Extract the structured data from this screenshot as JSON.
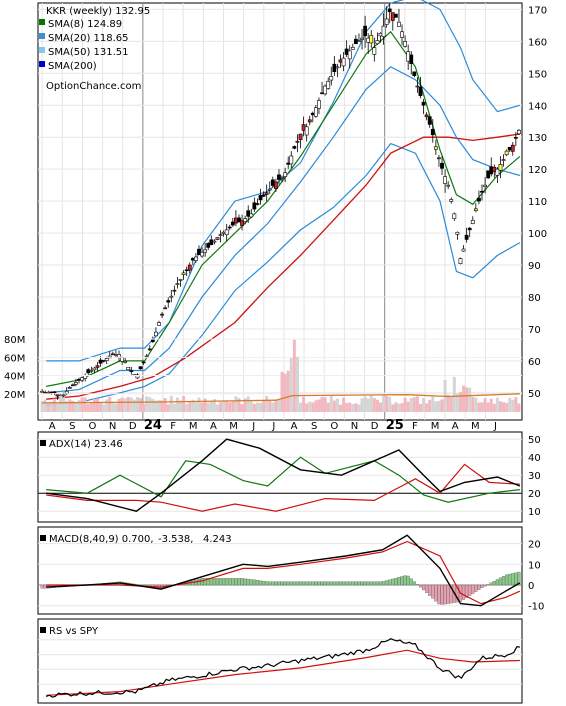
{
  "chart_data": [
    {
      "type": "candlestick",
      "panel": "price",
      "title": "KKR (weekly) 132.95",
      "source": "OptionChance.com",
      "legend": [
        {
          "label": "SMA(8) 124.89",
          "color": "#007700"
        },
        {
          "label": "SMA(20) 118.65",
          "color": "#3a8fd6"
        },
        {
          "label": "SMA(50) 131.51",
          "color": "#88c8ee"
        },
        {
          "label": "SMA(200)",
          "color": "#0000cc"
        }
      ],
      "y_ticks": [
        50,
        60,
        70,
        80,
        90,
        100,
        110,
        120,
        130,
        140,
        150,
        160,
        170
      ],
      "ylim": [
        44,
        172
      ],
      "x_labels": [
        "A",
        "S",
        "O",
        "N",
        "D",
        "24",
        "F",
        "M",
        "A",
        "M",
        "J",
        "J",
        "A",
        "S",
        "O",
        "N",
        "D",
        "25",
        "F",
        "M",
        "A",
        "M",
        "J"
      ],
      "close_path": [
        [
          0,
          51
        ],
        [
          4,
          50
        ],
        [
          8,
          50
        ],
        [
          12,
          49
        ],
        [
          16,
          52
        ],
        [
          20,
          54
        ],
        [
          24,
          56
        ],
        [
          28,
          58
        ],
        [
          32,
          60
        ],
        [
          36,
          62
        ],
        [
          40,
          62
        ],
        [
          44,
          58
        ],
        [
          48,
          55
        ],
        [
          52,
          60
        ],
        [
          56,
          66
        ],
        [
          60,
          74
        ],
        [
          64,
          79
        ],
        [
          68,
          84
        ],
        [
          72,
          88
        ],
        [
          76,
          92
        ],
        [
          80,
          94
        ],
        [
          84,
          96
        ],
        [
          88,
          99
        ],
        [
          92,
          101
        ],
        [
          96,
          103
        ],
        [
          100,
          104
        ],
        [
          104,
          106
        ],
        [
          108,
          110
        ],
        [
          112,
          113
        ],
        [
          116,
          116
        ],
        [
          120,
          118
        ],
        [
          124,
          125
        ],
        [
          128,
          131
        ],
        [
          132,
          134
        ],
        [
          136,
          140
        ],
        [
          140,
          146
        ],
        [
          144,
          150
        ],
        [
          148,
          154
        ],
        [
          152,
          157
        ],
        [
          156,
          160
        ],
        [
          160,
          162
        ],
        [
          164,
          158
        ],
        [
          168,
          164
        ],
        [
          172,
          170
        ],
        [
          176,
          166
        ],
        [
          180,
          158
        ],
        [
          184,
          148
        ],
        [
          188,
          140
        ],
        [
          192,
          132
        ],
        [
          196,
          122
        ],
        [
          200,
          115
        ],
        [
          204,
          103
        ],
        [
          206,
          92
        ],
        [
          208,
          96
        ],
        [
          212,
          104
        ],
        [
          216,
          112
        ],
        [
          220,
          118
        ],
        [
          224,
          120
        ],
        [
          228,
          124
        ],
        [
          232,
          128
        ],
        [
          235,
          133
        ]
      ],
      "sma8": [
        [
          4,
          52
        ],
        [
          20,
          54
        ],
        [
          40,
          60
        ],
        [
          52,
          60
        ],
        [
          64,
          72
        ],
        [
          80,
          90
        ],
        [
          96,
          100
        ],
        [
          112,
          110
        ],
        [
          128,
          124
        ],
        [
          144,
          140
        ],
        [
          160,
          156
        ],
        [
          172,
          163
        ],
        [
          184,
          152
        ],
        [
          196,
          126
        ],
        [
          204,
          112
        ],
        [
          212,
          109
        ],
        [
          224,
          118
        ],
        [
          235,
          124
        ]
      ],
      "sma20": [
        [
          4,
          50
        ],
        [
          20,
          51
        ],
        [
          40,
          57
        ],
        [
          52,
          57
        ],
        [
          64,
          64
        ],
        [
          80,
          80
        ],
        [
          96,
          93
        ],
        [
          112,
          103
        ],
        [
          128,
          116
        ],
        [
          144,
          130
        ],
        [
          160,
          145
        ],
        [
          172,
          152
        ],
        [
          184,
          148
        ],
        [
          196,
          140
        ],
        [
          204,
          130
        ],
        [
          212,
          123
        ],
        [
          224,
          120
        ],
        [
          235,
          118
        ]
      ],
      "sma50": [
        [
          4,
          48
        ],
        [
          20,
          49
        ],
        [
          40,
          52
        ],
        [
          56,
          55
        ],
        [
          72,
          61
        ],
        [
          96,
          72
        ],
        [
          112,
          83
        ],
        [
          128,
          93
        ],
        [
          144,
          104
        ],
        [
          160,
          115
        ],
        [
          172,
          125
        ],
        [
          188,
          130
        ],
        [
          200,
          130
        ],
        [
          212,
          129
        ],
        [
          224,
          130
        ],
        [
          235,
          131
        ]
      ],
      "boll_upper": [
        [
          4,
          60
        ],
        [
          20,
          60
        ],
        [
          40,
          64
        ],
        [
          52,
          64
        ],
        [
          64,
          72
        ],
        [
          80,
          96
        ],
        [
          96,
          110
        ],
        [
          112,
          113
        ],
        [
          128,
          122
        ],
        [
          144,
          141
        ],
        [
          160,
          163
        ],
        [
          172,
          172
        ],
        [
          184,
          174
        ],
        [
          196,
          170
        ],
        [
          206,
          158
        ],
        [
          212,
          148
        ],
        [
          224,
          138
        ],
        [
          235,
          140
        ]
      ],
      "boll_lower": [
        [
          4,
          46
        ],
        [
          20,
          47
        ],
        [
          40,
          50
        ],
        [
          52,
          52
        ],
        [
          64,
          56
        ],
        [
          80,
          68
        ],
        [
          96,
          82
        ],
        [
          112,
          91
        ],
        [
          128,
          101
        ],
        [
          144,
          108
        ],
        [
          160,
          118
        ],
        [
          172,
          128
        ],
        [
          184,
          125
        ],
        [
          196,
          110
        ],
        [
          204,
          88
        ],
        [
          212,
          86
        ],
        [
          224,
          93
        ],
        [
          235,
          97
        ]
      ]
    },
    {
      "type": "bar",
      "panel": "volume",
      "y_ticks": [
        "20M",
        "40M",
        "60M",
        "80M"
      ],
      "ylim": [
        0,
        90
      ]
    },
    {
      "type": "line",
      "panel": "adx",
      "title": "ADX(14) 23.46",
      "y_ticks": [
        10,
        20,
        30,
        40,
        50
      ],
      "ylim": [
        4,
        54
      ],
      "adx": [
        [
          4,
          20
        ],
        [
          24,
          17
        ],
        [
          48,
          10
        ],
        [
          60,
          20
        ],
        [
          80,
          38
        ],
        [
          92,
          50
        ],
        [
          108,
          45
        ],
        [
          128,
          33
        ],
        [
          148,
          30
        ],
        [
          164,
          38
        ],
        [
          176,
          44
        ],
        [
          188,
          30
        ],
        [
          196,
          21
        ],
        [
          208,
          26
        ],
        [
          224,
          29
        ],
        [
          235,
          24
        ]
      ],
      "plus_di": [
        [
          4,
          22
        ],
        [
          24,
          20
        ],
        [
          40,
          30
        ],
        [
          60,
          18
        ],
        [
          72,
          38
        ],
        [
          84,
          36
        ],
        [
          100,
          27
        ],
        [
          112,
          24
        ],
        [
          128,
          40
        ],
        [
          140,
          31
        ],
        [
          164,
          38
        ],
        [
          176,
          30
        ],
        [
          188,
          19
        ],
        [
          200,
          15
        ],
        [
          220,
          20
        ],
        [
          235,
          22
        ]
      ],
      "minus_di": [
        [
          4,
          19
        ],
        [
          24,
          16
        ],
        [
          48,
          16
        ],
        [
          60,
          15
        ],
        [
          80,
          10
        ],
        [
          96,
          14
        ],
        [
          116,
          10
        ],
        [
          140,
          17
        ],
        [
          164,
          16
        ],
        [
          184,
          28
        ],
        [
          196,
          20
        ],
        [
          208,
          36
        ],
        [
          220,
          26
        ],
        [
          235,
          25
        ]
      ]
    },
    {
      "type": "line",
      "panel": "macd",
      "title": "MACD(8,40,9) 0.700,",
      "values_display": [
        "-3.538,",
        "4.243"
      ],
      "values_colors": [
        "#dd0000",
        "#2266cc"
      ],
      "y_ticks": [
        -10,
        0,
        10,
        20
      ],
      "ylim": [
        -14,
        28
      ],
      "macd": [
        [
          4,
          -1
        ],
        [
          24,
          0
        ],
        [
          40,
          1
        ],
        [
          60,
          -2
        ],
        [
          80,
          4
        ],
        [
          100,
          10
        ],
        [
          112,
          9
        ],
        [
          128,
          11
        ],
        [
          150,
          14
        ],
        [
          168,
          17
        ],
        [
          180,
          24
        ],
        [
          196,
          8
        ],
        [
          206,
          -9
        ],
        [
          216,
          -10
        ],
        [
          228,
          -3
        ],
        [
          235,
          1
        ]
      ],
      "signal": [
        [
          4,
          0
        ],
        [
          24,
          0
        ],
        [
          40,
          0
        ],
        [
          60,
          -1
        ],
        [
          80,
          2
        ],
        [
          100,
          8
        ],
        [
          112,
          8
        ],
        [
          128,
          10
        ],
        [
          150,
          13
        ],
        [
          168,
          16
        ],
        [
          180,
          21
        ],
        [
          196,
          14
        ],
        [
          206,
          -4
        ],
        [
          216,
          -9
        ],
        [
          228,
          -6
        ],
        [
          235,
          -3
        ]
      ]
    },
    {
      "type": "line",
      "panel": "rs",
      "title": "RS vs SPY",
      "rs": [
        [
          4,
          0.05
        ],
        [
          24,
          0.08
        ],
        [
          48,
          0.1
        ],
        [
          64,
          0.25
        ],
        [
          80,
          0.32
        ],
        [
          96,
          0.4
        ],
        [
          112,
          0.45
        ],
        [
          128,
          0.52
        ],
        [
          144,
          0.58
        ],
        [
          160,
          0.66
        ],
        [
          172,
          0.8
        ],
        [
          184,
          0.72
        ],
        [
          196,
          0.42
        ],
        [
          206,
          0.28
        ],
        [
          216,
          0.55
        ],
        [
          228,
          0.6
        ],
        [
          235,
          0.7
        ]
      ],
      "rs_avg": [
        [
          4,
          0.05
        ],
        [
          40,
          0.1
        ],
        [
          64,
          0.2
        ],
        [
          96,
          0.33
        ],
        [
          128,
          0.42
        ],
        [
          160,
          0.56
        ],
        [
          180,
          0.66
        ],
        [
          196,
          0.55
        ],
        [
          212,
          0.5
        ],
        [
          235,
          0.52
        ]
      ]
    }
  ]
}
